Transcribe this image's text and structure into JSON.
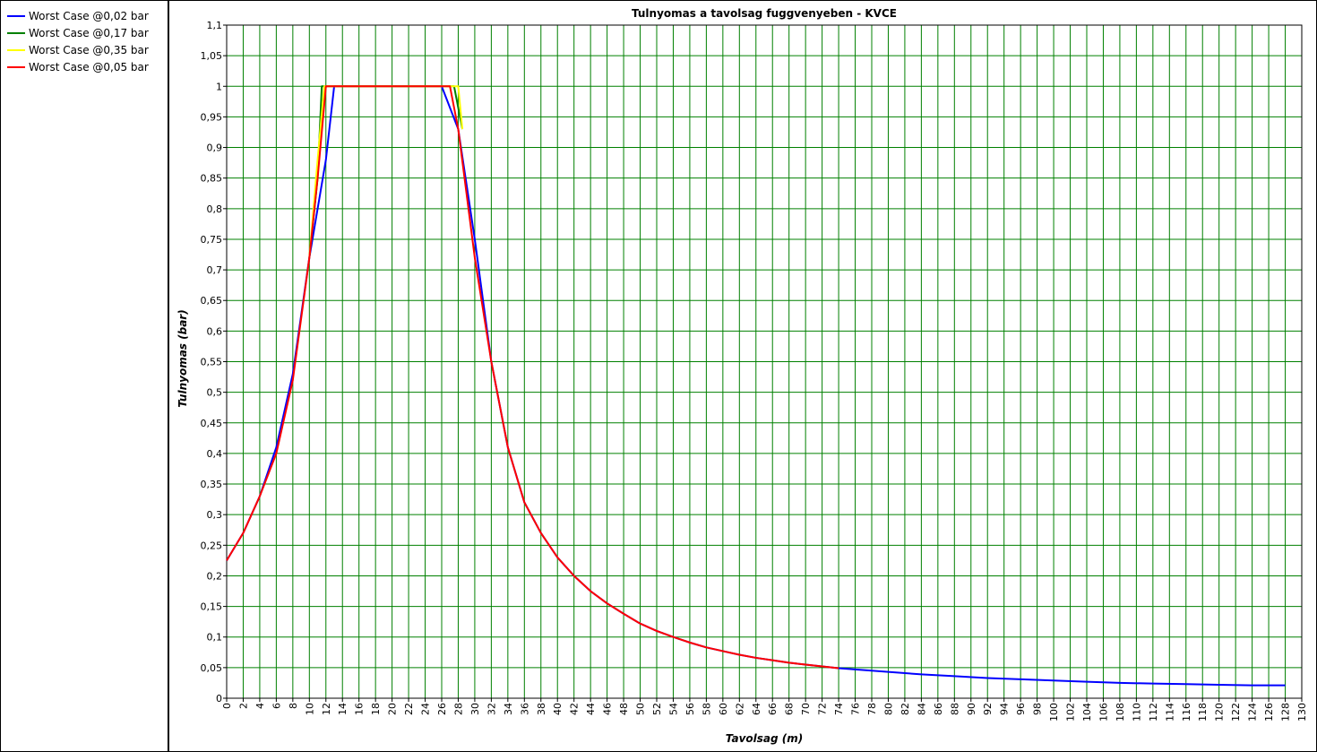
{
  "chart_data": {
    "type": "line",
    "title": "Tulnyomas a tavolsag fuggvenyeben - KVCE",
    "x_label": "Tavolsag (m)",
    "y_label": "Tulnyomas (bar)",
    "xlim": [
      0,
      130
    ],
    "ylim": [
      0,
      1.1
    ],
    "grid": true,
    "grid_color": "#008000",
    "legend": "left",
    "xticks": [
      0,
      2,
      4,
      6,
      8,
      10,
      12,
      14,
      16,
      18,
      20,
      22,
      24,
      26,
      28,
      30,
      32,
      34,
      36,
      38,
      40,
      42,
      44,
      46,
      48,
      50,
      52,
      54,
      56,
      58,
      60,
      62,
      64,
      66,
      68,
      70,
      72,
      74,
      76,
      78,
      80,
      82,
      84,
      86,
      88,
      90,
      92,
      94,
      96,
      98,
      100,
      102,
      104,
      106,
      108,
      110,
      112,
      114,
      116,
      118,
      120,
      122,
      124,
      126,
      128,
      130
    ],
    "yticks": [
      0,
      {
        "value": 0.05,
        "label": "0,05"
      },
      {
        "value": 0.1,
        "label": "0,1"
      },
      {
        "value": 0.15,
        "label": "0,15"
      },
      {
        "value": 0.2,
        "label": "0,2"
      },
      {
        "value": 0.25,
        "label": "0,25"
      },
      {
        "value": 0.3,
        "label": "0,3"
      },
      {
        "value": 0.35,
        "label": "0,35"
      },
      {
        "value": 0.4,
        "label": "0,4"
      },
      {
        "value": 0.45,
        "label": "0,45"
      },
      {
        "value": 0.5,
        "label": "0,5"
      },
      {
        "value": 0.55,
        "label": "0,55"
      },
      {
        "value": 0.6,
        "label": "0,6"
      },
      {
        "value": 0.65,
        "label": "0,65"
      },
      {
        "value": 0.7,
        "label": "0,7"
      },
      {
        "value": 0.75,
        "label": "0,75"
      },
      {
        "value": 0.8,
        "label": "0,8"
      },
      {
        "value": 0.85,
        "label": "0,85"
      },
      {
        "value": 0.9,
        "label": "0,9"
      },
      {
        "value": 0.95,
        "label": "0,95"
      },
      1,
      {
        "value": 1.05,
        "label": "1,05"
      },
      {
        "value": 1.1,
        "label": "1,1"
      }
    ],
    "series": [
      {
        "name": "Worst Case @0,02 bar",
        "color": "#0000ff",
        "x": [
          0,
          2,
          4,
          6,
          8,
          10,
          12,
          13,
          26,
          28,
          30,
          32,
          34,
          36,
          38,
          40,
          42,
          44,
          46,
          48,
          50,
          52,
          54,
          56,
          58,
          60,
          62,
          64,
          66,
          68,
          70,
          72,
          74,
          76,
          80,
          84,
          88,
          92,
          96,
          100,
          104,
          108,
          112,
          116,
          120,
          124,
          128
        ],
        "values": [
          0.225,
          0.27,
          0.33,
          0.41,
          0.53,
          0.72,
          0.88,
          1,
          1,
          0.93,
          0.75,
          0.55,
          0.41,
          0.32,
          0.27,
          0.23,
          0.2,
          0.175,
          0.155,
          0.138,
          0.122,
          0.11,
          0.1,
          0.091,
          0.083,
          0.077,
          0.071,
          0.066,
          0.062,
          0.058,
          0.055,
          0.052,
          0.049,
          0.047,
          0.043,
          0.039,
          0.036,
          0.033,
          0.031,
          0.029,
          0.027,
          0.025,
          0.024,
          0.023,
          0.022,
          0.021,
          0.021
        ]
      },
      {
        "name": "Worst Case @0,17 bar",
        "color": "#008000",
        "x": [
          10,
          11,
          11.5,
          27.5,
          28.5
        ],
        "values": [
          0.72,
          0.85,
          1,
          1,
          0.93
        ]
      },
      {
        "name": "Worst Case @0,35 bar",
        "color": "#ffff00",
        "x": [
          10,
          11,
          11.8,
          28,
          28.5
        ],
        "values": [
          0.72,
          0.88,
          1,
          1,
          0.93
        ]
      },
      {
        "name": "Worst Case @0,05 bar",
        "color": "#ff0000",
        "x": [
          0,
          2,
          4,
          6,
          8,
          10,
          11,
          12,
          27,
          28,
          30,
          32,
          34,
          36,
          38,
          40,
          42,
          44,
          46,
          48,
          50,
          52,
          54,
          56,
          58,
          60,
          62,
          64,
          66,
          68,
          70,
          72,
          74
        ],
        "values": [
          0.225,
          0.27,
          0.33,
          0.4,
          0.52,
          0.72,
          0.85,
          1,
          1,
          0.93,
          0.72,
          0.55,
          0.41,
          0.32,
          0.27,
          0.23,
          0.2,
          0.175,
          0.155,
          0.138,
          0.122,
          0.11,
          0.1,
          0.091,
          0.083,
          0.077,
          0.071,
          0.066,
          0.062,
          0.058,
          0.055,
          0.052,
          0.049
        ]
      }
    ]
  }
}
